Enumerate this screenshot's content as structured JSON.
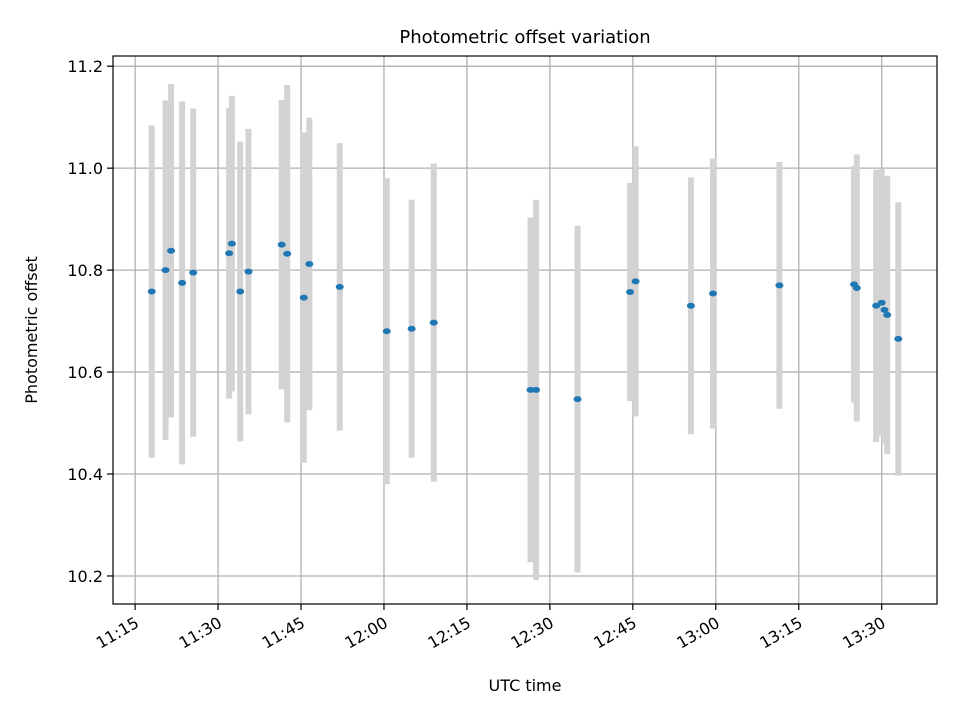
{
  "chart_data": {
    "type": "scatter",
    "title": "Photometric offset variation",
    "xlabel": "UTC time",
    "ylabel": "Photometric offset",
    "x_axis_type": "time",
    "xlim": [
      "11:11",
      "13:40"
    ],
    "ylim": [
      10.145,
      11.22
    ],
    "grid": true,
    "xticks": [
      "11:15",
      "11:30",
      "11:45",
      "12:00",
      "12:15",
      "12:30",
      "12:45",
      "13:00",
      "13:15",
      "13:30"
    ],
    "yticks": [
      "10.2",
      "10.4",
      "10.6",
      "10.8",
      "11.0",
      "11.2"
    ],
    "colors": {
      "marker": "#1f77b4",
      "errorbar": "#d3d3d3",
      "grid": "#b0b0b0"
    },
    "points": [
      {
        "x": "11:18:00",
        "y": 10.758,
        "yerr": 0.326
      },
      {
        "x": "11:20:30",
        "y": 10.8,
        "yerr": 0.333
      },
      {
        "x": "11:21:30",
        "y": 10.838,
        "yerr": 0.327
      },
      {
        "x": "11:23:30",
        "y": 10.775,
        "yerr": 0.356
      },
      {
        "x": "11:25:30",
        "y": 10.795,
        "yerr": 0.322
      },
      {
        "x": "11:32:00",
        "y": 10.833,
        "yerr": 0.285
      },
      {
        "x": "11:32:30",
        "y": 10.852,
        "yerr": 0.29
      },
      {
        "x": "11:34:00",
        "y": 10.758,
        "yerr": 0.294
      },
      {
        "x": "11:35:30",
        "y": 10.797,
        "yerr": 0.28
      },
      {
        "x": "11:41:30",
        "y": 10.85,
        "yerr": 0.284
      },
      {
        "x": "11:42:30",
        "y": 10.832,
        "yerr": 0.331
      },
      {
        "x": "11:45:30",
        "y": 10.746,
        "yerr": 0.324
      },
      {
        "x": "11:46:30",
        "y": 10.812,
        "yerr": 0.287
      },
      {
        "x": "11:52:00",
        "y": 10.767,
        "yerr": 0.282
      },
      {
        "x": "12:00:30",
        "y": 10.68,
        "yerr": 0.3
      },
      {
        "x": "12:05:00",
        "y": 10.685,
        "yerr": 0.253
      },
      {
        "x": "12:09:00",
        "y": 10.697,
        "yerr": 0.312
      },
      {
        "x": "12:26:30",
        "y": 10.565,
        "yerr": 0.338
      },
      {
        "x": "12:27:30",
        "y": 10.565,
        "yerr": 0.373
      },
      {
        "x": "12:35:00",
        "y": 10.547,
        "yerr": 0.34
      },
      {
        "x": "12:44:30",
        "y": 10.757,
        "yerr": 0.214
      },
      {
        "x": "12:45:30",
        "y": 10.778,
        "yerr": 0.265
      },
      {
        "x": "12:55:30",
        "y": 10.73,
        "yerr": 0.252
      },
      {
        "x": "12:59:30",
        "y": 10.754,
        "yerr": 0.265
      },
      {
        "x": "13:11:30",
        "y": 10.77,
        "yerr": 0.242
      },
      {
        "x": "13:25:00",
        "y": 10.772,
        "yerr": 0.232
      },
      {
        "x": "13:25:30",
        "y": 10.765,
        "yerr": 0.262
      },
      {
        "x": "13:29:00",
        "y": 10.73,
        "yerr": 0.267
      },
      {
        "x": "13:30:00",
        "y": 10.736,
        "yerr": 0.262
      },
      {
        "x": "13:30:30",
        "y": 10.722,
        "yerr": 0.262
      },
      {
        "x": "13:31:00",
        "y": 10.712,
        "yerr": 0.273
      },
      {
        "x": "13:33:00",
        "y": 10.665,
        "yerr": 0.268
      }
    ]
  }
}
